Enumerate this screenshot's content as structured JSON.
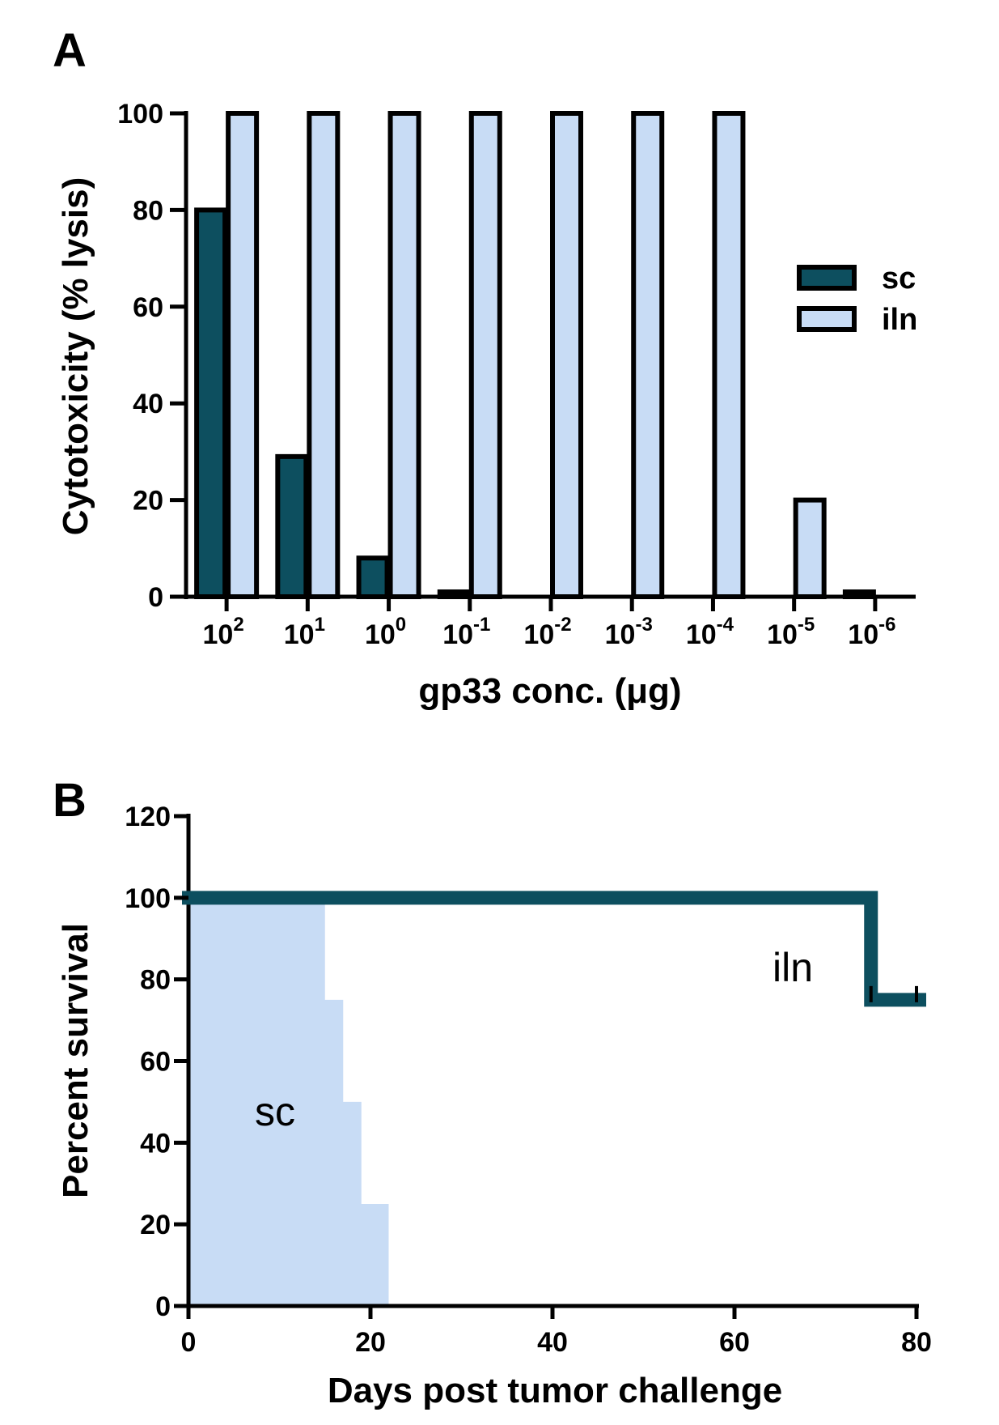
{
  "colors": {
    "sc": "#0d4f5f",
    "iln": "#c8dcf5",
    "axis": "#000000"
  },
  "chart_data": [
    {
      "panel_label": "A",
      "type": "bar",
      "xlabel": "gp33 conc. (μg)",
      "ylabel": "Cytotoxicity (% lysis)",
      "ylim": [
        0,
        100
      ],
      "yticks": [
        "0",
        "20",
        "40",
        "60",
        "80",
        "100"
      ],
      "categories": [
        {
          "base": "10",
          "exp": "2"
        },
        {
          "base": "10",
          "exp": "1"
        },
        {
          "base": "10",
          "exp": "0"
        },
        {
          "base": "10",
          "exp": "-1"
        },
        {
          "base": "10",
          "exp": "-2"
        },
        {
          "base": "10",
          "exp": "-3"
        },
        {
          "base": "10",
          "exp": "-4"
        },
        {
          "base": "10",
          "exp": "-5"
        },
        {
          "base": "10",
          "exp": "-6"
        }
      ],
      "series": [
        {
          "name": "sc",
          "values": [
            80,
            29,
            8,
            1,
            0,
            0,
            0,
            0,
            1
          ]
        },
        {
          "name": "iln",
          "values": [
            100,
            100,
            100,
            100,
            100,
            100,
            100,
            20,
            0
          ]
        }
      ],
      "legend": [
        "sc",
        "iln"
      ],
      "legend_position": "right"
    },
    {
      "panel_label": "B",
      "type": "line",
      "subtype": "step survival",
      "xlabel": "Days post tumor challenge",
      "ylabel": "Percent survival",
      "xlim": [
        0,
        80
      ],
      "ylim": [
        0,
        120
      ],
      "xticks": [
        "0",
        "20",
        "40",
        "60",
        "80"
      ],
      "yticks": [
        "0",
        "20",
        "40",
        "60",
        "80",
        "100",
        "120"
      ],
      "series": [
        {
          "name": "iln",
          "x": [
            0,
            75,
            80
          ],
          "y": [
            100,
            75,
            75
          ],
          "censored_x": [
            75,
            80
          ]
        },
        {
          "name": "sc",
          "x": [
            0,
            15,
            17,
            19,
            22
          ],
          "y": [
            100,
            75,
            50,
            25,
            0
          ]
        }
      ],
      "annotations": [
        "iln",
        "sc"
      ]
    }
  ]
}
